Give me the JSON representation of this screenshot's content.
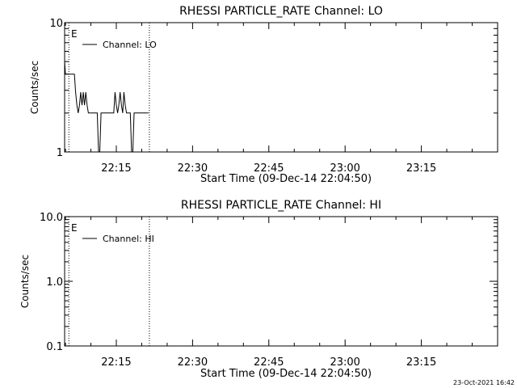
{
  "footer": {
    "timestamp": "23-Oct-2021 16:42"
  },
  "chart_data": [
    {
      "type": "line",
      "title": "RHESSI PARTICLE_RATE Channel: LO",
      "xlabel": "Start Time (09-Dec-14 22:04:50)",
      "ylabel": "Counts/sec",
      "x_unit": "time of day",
      "xlim": [
        "22:04:50",
        "23:30:00"
      ],
      "x_ticks": [
        "22:15",
        "22:30",
        "22:45",
        "23:00",
        "23:15"
      ],
      "ylim": [
        1,
        10
      ],
      "y_scale": "log",
      "y_ticks": [
        "1",
        "10"
      ],
      "legend": {
        "label": "Channel: LO",
        "position": "top-left"
      },
      "flag_label": "E",
      "markers_x": [
        "22:05:40",
        "22:21:30"
      ],
      "series": [
        {
          "name": "Channel: LO",
          "x": [
            "22:04:50",
            "22:05:00",
            "22:05:10",
            "22:05:20",
            "22:05:30",
            "22:06:00",
            "22:06:30",
            "22:06:45",
            "22:07:00",
            "22:07:15",
            "22:07:30",
            "22:07:45",
            "22:08:00",
            "22:08:15",
            "22:08:30",
            "22:08:45",
            "22:09:00",
            "22:09:15",
            "22:09:30",
            "22:09:45",
            "22:10:00",
            "22:10:30",
            "22:11:00",
            "22:11:15",
            "22:11:30",
            "22:11:45",
            "22:12:00",
            "22:12:30",
            "22:13:00",
            "22:13:30",
            "22:13:45",
            "22:14:00",
            "22:14:15",
            "22:14:30",
            "22:14:45",
            "22:15:00",
            "22:15:15",
            "22:15:30",
            "22:15:45",
            "22:16:00",
            "22:16:15",
            "22:16:30",
            "22:16:45",
            "22:17:00",
            "22:17:15",
            "22:17:30",
            "22:17:45",
            "22:18:00",
            "22:18:15",
            "22:18:30",
            "22:19:00",
            "22:19:30",
            "22:20:00",
            "22:20:30",
            "22:21:00",
            "22:21:20"
          ],
          "y": [
            5,
            4,
            4,
            4,
            4,
            4,
            4,
            4,
            2.9,
            2.3,
            2.0,
            2.3,
            2.9,
            2.3,
            2.9,
            2.3,
            2.9,
            2.3,
            2.0,
            2.0,
            2.0,
            2.0,
            2.0,
            2.0,
            1.0,
            1.0,
            2.0,
            2.0,
            2.0,
            2.0,
            2.0,
            2.0,
            2.0,
            2.0,
            2.9,
            2.3,
            2.0,
            2.3,
            2.9,
            2.3,
            2.0,
            2.9,
            2.3,
            2.0,
            2.0,
            2.0,
            2.0,
            1.0,
            1.0,
            2.0,
            2.0,
            2.0,
            2.0,
            2.0,
            2.0,
            2.0
          ]
        }
      ]
    },
    {
      "type": "line",
      "title": "RHESSI PARTICLE_RATE Channel: HI",
      "xlabel": "Start Time (09-Dec-14 22:04:50)",
      "ylabel": "Counts/sec",
      "x_unit": "time of day",
      "xlim": [
        "22:04:50",
        "23:30:00"
      ],
      "x_ticks": [
        "22:15",
        "22:30",
        "22:45",
        "23:00",
        "23:15"
      ],
      "ylim": [
        0.1,
        10.0
      ],
      "y_scale": "log",
      "y_ticks": [
        "0.1",
        "1.0",
        "10.0"
      ],
      "legend": {
        "label": "Channel: HI",
        "position": "top-left"
      },
      "flag_label": "E",
      "markers_x": [
        "22:05:40",
        "22:21:30"
      ],
      "series": [
        {
          "name": "Channel: HI",
          "x": [],
          "y": []
        }
      ]
    }
  ]
}
